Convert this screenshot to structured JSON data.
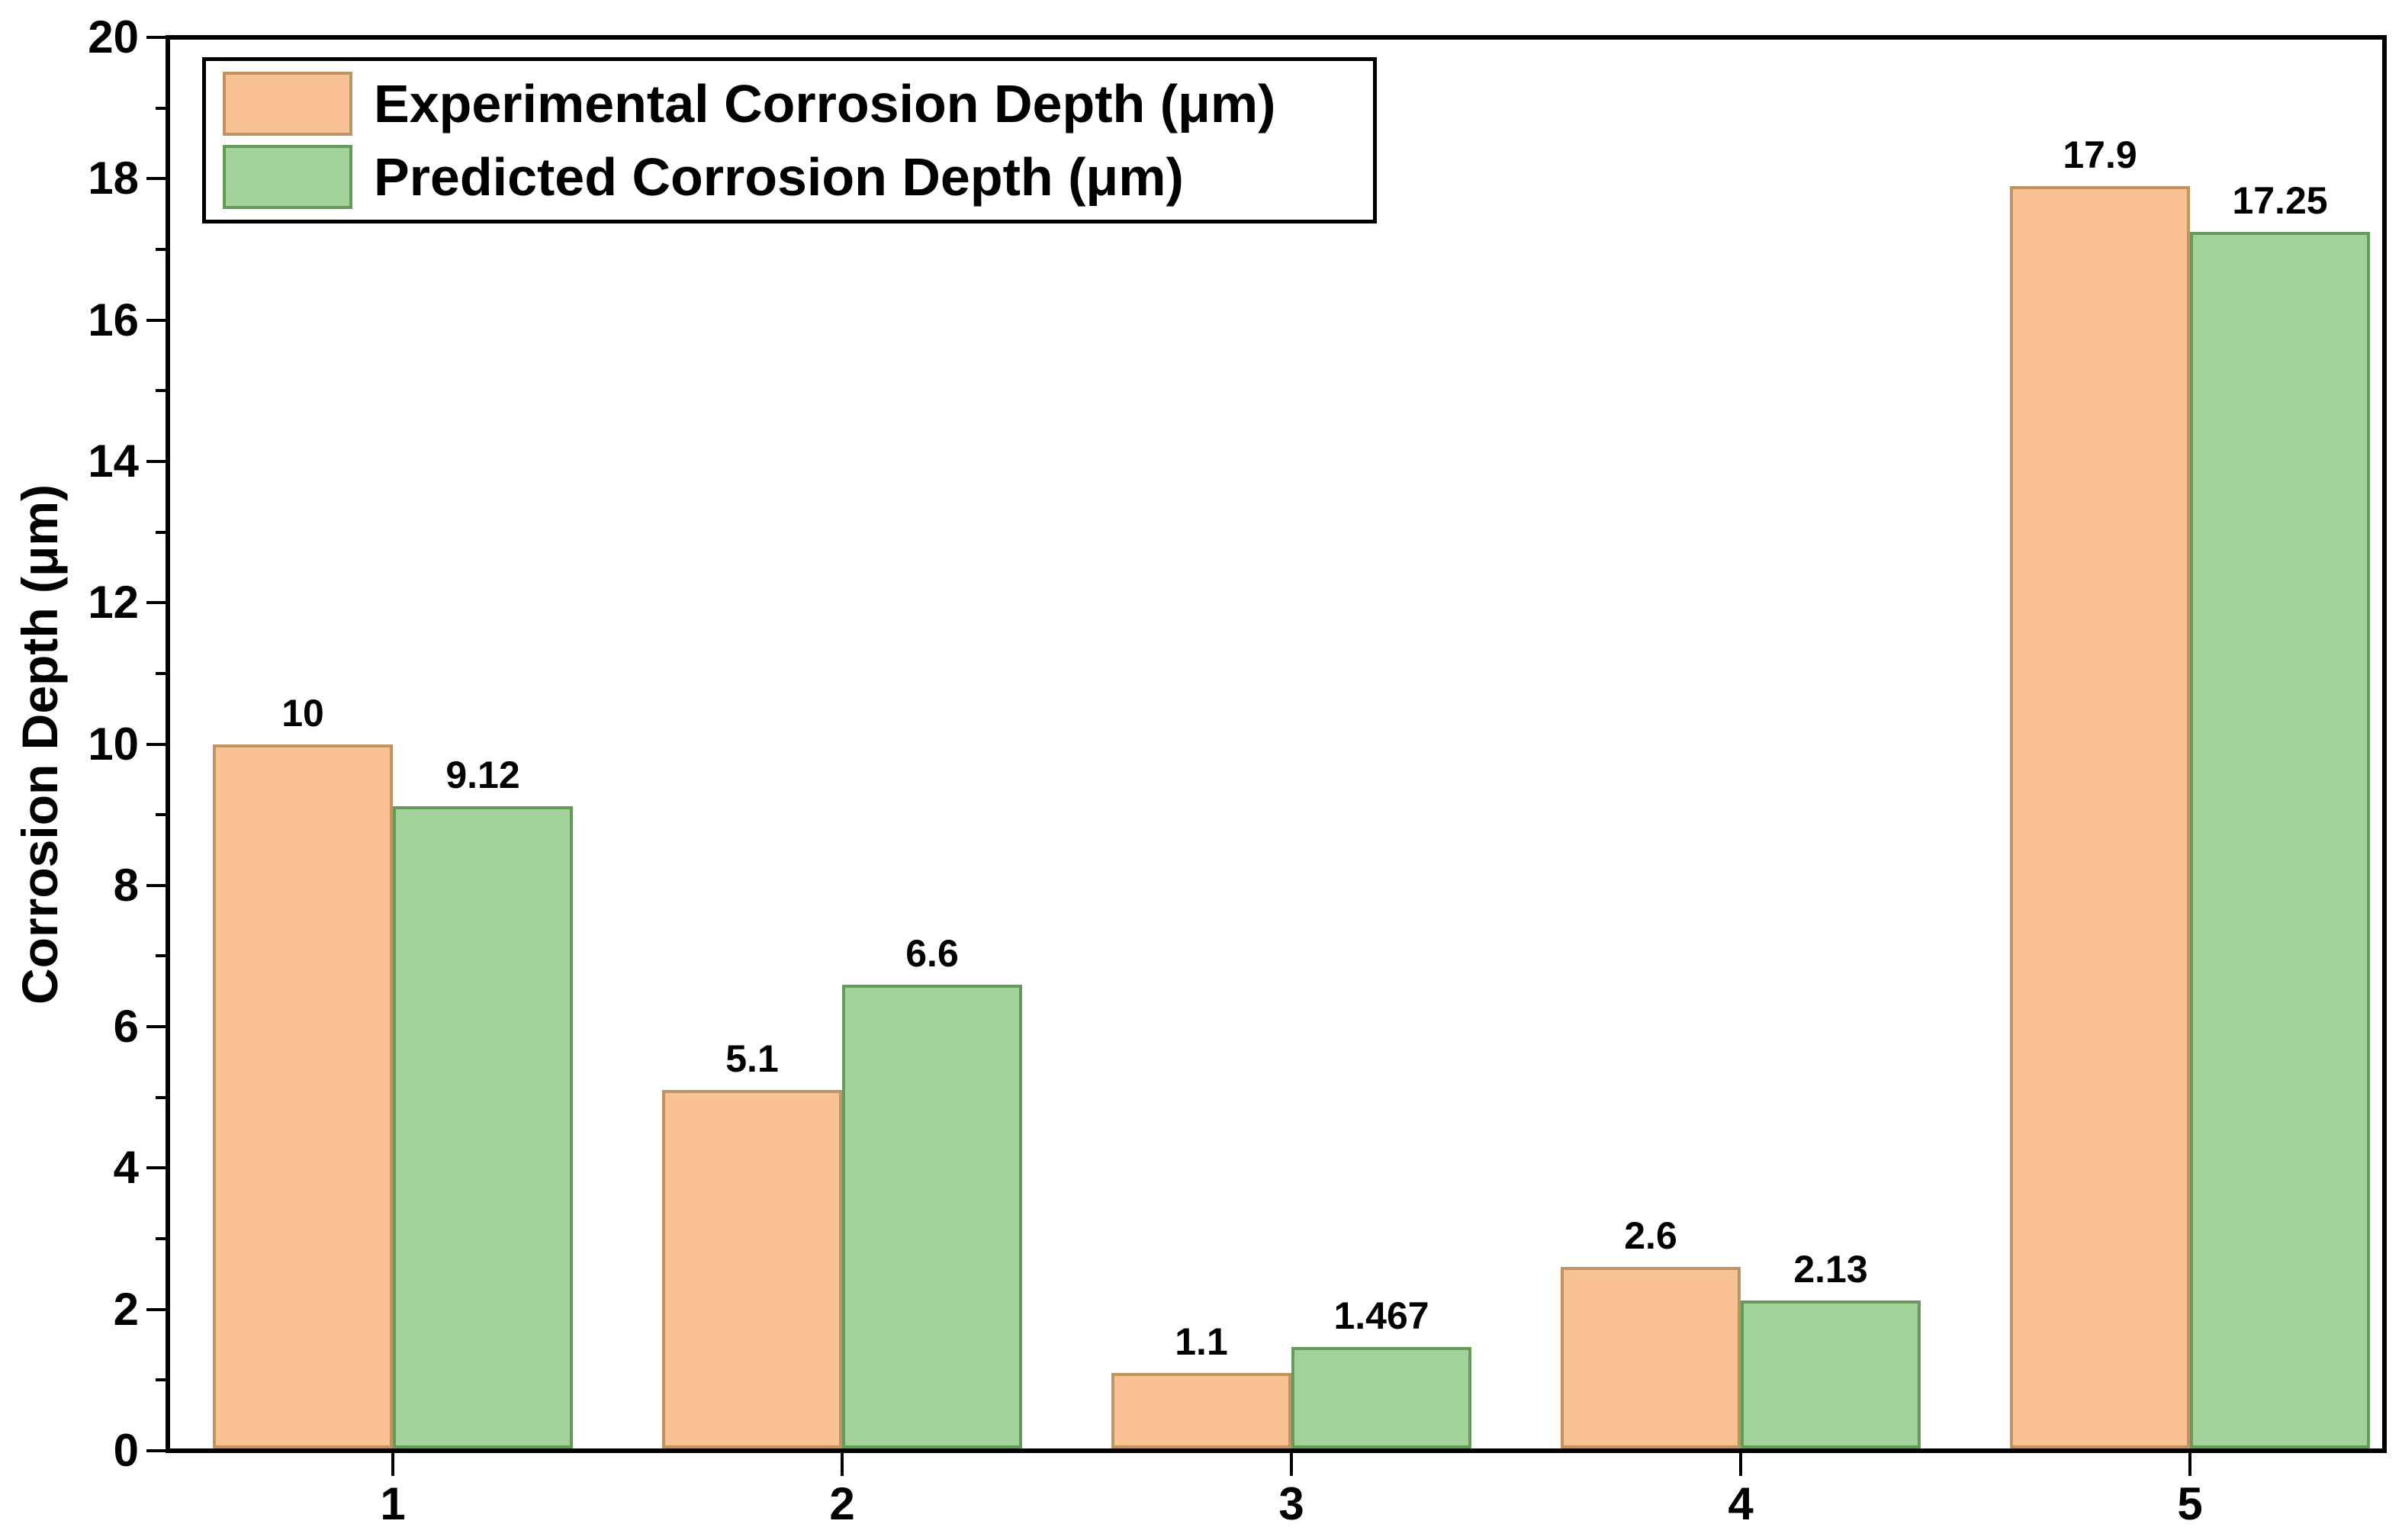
{
  "chart_data": {
    "type": "bar",
    "title": "",
    "xlabel": "",
    "ylabel": "Corrosion Depth (μm)",
    "ylim": [
      0,
      20
    ],
    "yticks_major": [
      0,
      2,
      4,
      6,
      8,
      10,
      12,
      14,
      16,
      18,
      20
    ],
    "yticks_minor": [
      1,
      3,
      5,
      7,
      9,
      11,
      13,
      15,
      17,
      19
    ],
    "categories": [
      "1",
      "2",
      "3",
      "4",
      "5"
    ],
    "series": [
      {
        "name": "Experimental Corrosion Depth (μm)",
        "values": [
          10,
          5.1,
          1.1,
          2.6,
          17.9
        ],
        "labels": [
          "10",
          "5.1",
          "1.1",
          "2.6",
          "17.9"
        ],
        "fill": "#FAC293",
        "border": "#BF9463"
      },
      {
        "name": "Predicted Corrosion Depth (μm)",
        "values": [
          9.12,
          6.6,
          1.467,
          2.13,
          17.25
        ],
        "labels": [
          "9.12",
          "6.6",
          "1.467",
          "2.13",
          "17.25"
        ],
        "fill": "#A2D199",
        "border": "#639B59"
      }
    ],
    "grid": false,
    "legend_position": "top-left",
    "axis_color": "#000000",
    "text_color": "#000000",
    "background": "#FFFFFF"
  }
}
